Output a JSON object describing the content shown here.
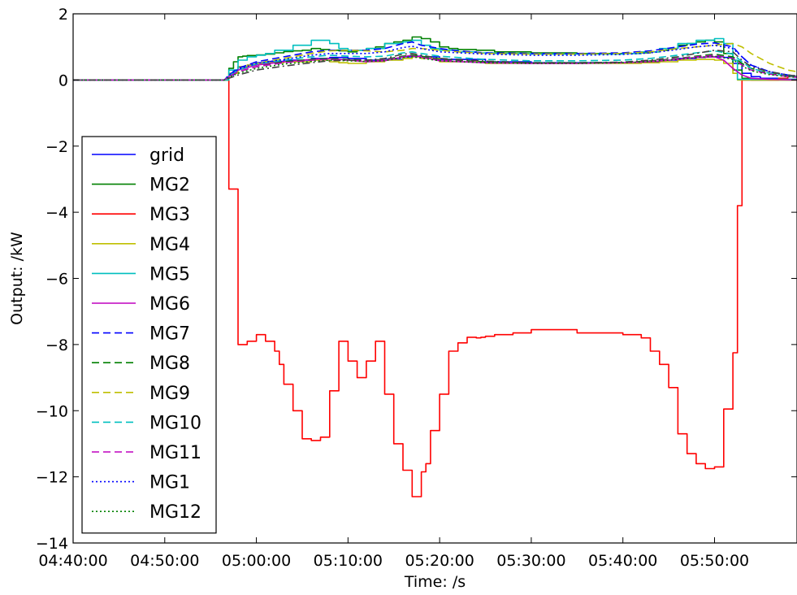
{
  "chart_data": {
    "type": "line",
    "title": "",
    "xlabel": "Time: /s",
    "ylabel": "Output: /kW",
    "xlim": [
      "04:40:00",
      "04:59:00+01:00"
    ],
    "x_range_minutes": [
      0,
      79
    ],
    "ylim": [
      -14,
      2
    ],
    "xticks": [
      "04:40:00",
      "04:50:00",
      "05:00:00",
      "05:10:00",
      "05:20:00",
      "05:30:00",
      "05:40:00",
      "05:50:00"
    ],
    "xtick_minutes": [
      0,
      10,
      20,
      30,
      40,
      50,
      60,
      70
    ],
    "yticks": [
      2,
      0,
      -2,
      -4,
      -6,
      -8,
      -10,
      -12,
      -14
    ],
    "ytick_labels": [
      "2",
      "0",
      "−2",
      "−4",
      "−6",
      "−8",
      "−10",
      "−12",
      "−14"
    ],
    "grid": false,
    "legend_position": "lower-left",
    "series": [
      {
        "name": "grid",
        "color": "#0000ff",
        "dash": "solid",
        "step": true,
        "x": [
          0,
          16.5,
          17,
          17.5,
          18,
          19,
          20,
          21,
          23,
          26,
          28,
          30,
          32,
          34,
          36,
          37,
          38,
          40,
          45,
          50,
          55,
          60,
          62,
          64,
          66,
          68,
          69,
          70,
          71,
          72,
          73,
          74,
          75,
          77,
          79
        ],
        "y": [
          0,
          0,
          0.15,
          0.3,
          0.4,
          0.45,
          0.52,
          0.56,
          0.6,
          0.65,
          0.68,
          0.65,
          0.6,
          0.62,
          0.7,
          0.72,
          0.7,
          0.62,
          0.55,
          0.52,
          0.52,
          0.52,
          0.55,
          0.6,
          0.65,
          0.68,
          0.7,
          0.7,
          0.68,
          0.5,
          0.2,
          0.1,
          0.05,
          0.02,
          0
        ]
      },
      {
        "name": "MG2",
        "color": "#008000",
        "dash": "solid",
        "step": true,
        "x": [
          0,
          16.5,
          17,
          17.5,
          18,
          18.5,
          19,
          20,
          21,
          22,
          23,
          24,
          25,
          26,
          27,
          28,
          29,
          30,
          31,
          32,
          33,
          34,
          35,
          36,
          37,
          38,
          39,
          40,
          41,
          42,
          44,
          46,
          50,
          55,
          60,
          62,
          63,
          64,
          65,
          66,
          67,
          68,
          69,
          70,
          71,
          72,
          73,
          74,
          75,
          79
        ],
        "y": [
          0,
          0,
          0.35,
          0.55,
          0.7,
          0.72,
          0.74,
          0.76,
          0.78,
          0.82,
          0.86,
          0.88,
          0.9,
          0.95,
          0.92,
          0.9,
          0.88,
          0.85,
          0.9,
          0.95,
          1.0,
          1.1,
          1.15,
          1.2,
          1.3,
          1.25,
          1.15,
          1.0,
          0.95,
          0.92,
          0.9,
          0.85,
          0.82,
          0.8,
          0.8,
          0.82,
          0.85,
          0.9,
          0.95,
          1.05,
          1.1,
          1.15,
          1.2,
          1.15,
          0.8,
          0.3,
          0.05,
          0,
          0,
          0
        ]
      },
      {
        "name": "MG3",
        "color": "#ff0000",
        "dash": "solid",
        "step": true,
        "x": [
          0,
          16.5,
          17,
          18,
          19,
          20,
          21,
          22,
          22.5,
          23,
          24,
          25,
          26,
          27,
          28,
          29,
          30,
          31,
          32,
          32.5,
          33,
          34,
          35,
          36,
          37,
          38,
          38.5,
          39,
          40,
          41,
          42,
          43,
          44,
          44.5,
          45,
          46,
          48,
          50,
          55,
          60,
          62,
          63,
          64,
          65,
          66,
          67,
          68,
          69,
          70,
          71,
          72,
          72.5,
          73,
          74,
          75,
          76,
          77,
          78,
          79
        ],
        "y": [
          0,
          0,
          -3.3,
          -8.0,
          -7.9,
          -7.7,
          -7.9,
          -8.2,
          -8.6,
          -9.2,
          -10.0,
          -10.85,
          -10.9,
          -10.8,
          -9.4,
          -7.9,
          -8.5,
          -9.0,
          -8.5,
          -8.5,
          -7.9,
          -9.5,
          -11.0,
          -11.8,
          -12.6,
          -11.85,
          -11.6,
          -10.6,
          -9.5,
          -8.2,
          -7.95,
          -7.78,
          -7.8,
          -7.78,
          -7.75,
          -7.7,
          -7.65,
          -7.55,
          -7.65,
          -7.7,
          -7.8,
          -8.2,
          -8.6,
          -9.3,
          -10.7,
          -11.3,
          -11.6,
          -11.75,
          -11.7,
          -9.95,
          -8.25,
          -3.8,
          0,
          0,
          0,
          0,
          0.05,
          0.1,
          0.15
        ]
      },
      {
        "name": "MG4",
        "color": "#bfbf00",
        "dash": "solid",
        "step": true,
        "x": [
          0,
          16.5,
          17,
          18,
          19,
          20,
          21,
          23,
          26,
          28,
          29,
          30,
          32,
          34,
          36,
          37,
          38,
          40,
          45,
          50,
          55,
          60,
          62,
          64,
          66,
          68,
          70,
          71,
          72,
          72.5,
          79
        ],
        "y": [
          0,
          0,
          0.2,
          0.4,
          0.45,
          0.5,
          0.52,
          0.55,
          0.6,
          0.55,
          0.52,
          0.5,
          0.55,
          0.6,
          0.65,
          0.7,
          0.65,
          0.55,
          0.5,
          0.5,
          0.5,
          0.5,
          0.52,
          0.55,
          0.6,
          0.62,
          0.6,
          0.5,
          0.2,
          0,
          0
        ]
      },
      {
        "name": "MG5",
        "color": "#00bfbf",
        "dash": "solid",
        "step": true,
        "x": [
          0,
          16.5,
          17,
          18,
          19,
          20,
          21,
          22,
          24,
          26,
          28,
          29,
          30,
          32,
          34,
          36,
          37,
          38,
          39,
          40,
          42,
          44,
          46,
          50,
          55,
          60,
          62,
          64,
          66,
          68,
          70,
          71,
          72,
          72.5,
          79
        ],
        "y": [
          0,
          0,
          0.3,
          0.6,
          0.7,
          0.75,
          0.8,
          0.9,
          1.05,
          1.2,
          1.1,
          0.95,
          0.9,
          0.95,
          1.1,
          1.15,
          1.2,
          1.05,
          0.95,
          0.9,
          0.85,
          0.82,
          0.8,
          0.78,
          0.78,
          0.8,
          0.85,
          0.95,
          1.1,
          1.2,
          1.25,
          1.1,
          0.6,
          0.02,
          0
        ]
      },
      {
        "name": "MG6",
        "color": "#bf00bf",
        "dash": "solid",
        "step": false,
        "x": [
          0,
          16.5,
          17,
          18,
          20,
          23,
          26,
          28,
          30,
          32,
          34,
          36,
          37,
          38,
          40,
          45,
          50,
          55,
          60,
          63,
          66,
          68,
          70,
          71,
          72,
          73,
          74,
          76,
          79
        ],
        "y": [
          0,
          0,
          0.1,
          0.3,
          0.45,
          0.55,
          0.62,
          0.65,
          0.6,
          0.55,
          0.58,
          0.7,
          0.75,
          0.7,
          0.58,
          0.52,
          0.5,
          0.5,
          0.52,
          0.55,
          0.62,
          0.68,
          0.7,
          0.6,
          0.35,
          0.15,
          0.05,
          0.02,
          0
        ]
      },
      {
        "name": "MG7",
        "color": "#0000ff",
        "dash": "9,5",
        "step": false,
        "x": [
          0,
          16.5,
          17,
          18,
          20,
          23,
          26,
          28,
          30,
          32,
          34,
          36,
          37,
          38,
          40,
          42,
          45,
          50,
          55,
          60,
          63,
          66,
          68,
          70,
          72,
          73,
          74,
          76,
          78,
          79
        ],
        "y": [
          0,
          0,
          0.15,
          0.35,
          0.55,
          0.7,
          0.85,
          0.9,
          0.9,
          0.9,
          0.95,
          1.1,
          1.15,
          1.05,
          0.95,
          0.88,
          0.82,
          0.8,
          0.8,
          0.82,
          0.88,
          1.0,
          1.08,
          1.12,
          1.0,
          0.7,
          0.45,
          0.25,
          0.15,
          0.1
        ]
      },
      {
        "name": "MG8",
        "color": "#008000",
        "dash": "9,5",
        "step": false,
        "x": [
          0,
          16.5,
          17,
          18,
          20,
          23,
          26,
          28,
          30,
          32,
          34,
          36,
          37,
          38,
          40,
          45,
          50,
          55,
          60,
          63,
          66,
          68,
          70,
          72,
          73,
          74,
          76,
          78,
          79
        ],
        "y": [
          0,
          0,
          0.1,
          0.25,
          0.4,
          0.55,
          0.62,
          0.65,
          0.62,
          0.6,
          0.62,
          0.72,
          0.75,
          0.72,
          0.62,
          0.55,
          0.52,
          0.52,
          0.53,
          0.58,
          0.65,
          0.72,
          0.78,
          0.7,
          0.5,
          0.35,
          0.2,
          0.12,
          0.1
        ]
      },
      {
        "name": "MG9",
        "color": "#bfbf00",
        "dash": "9,5",
        "step": false,
        "x": [
          0,
          16.5,
          17,
          18,
          20,
          23,
          26,
          28,
          30,
          32,
          34,
          36,
          37,
          38,
          40,
          42,
          45,
          50,
          55,
          60,
          63,
          66,
          68,
          70,
          71,
          72,
          73,
          74,
          76,
          78,
          79
        ],
        "y": [
          0,
          0,
          0.12,
          0.3,
          0.5,
          0.65,
          0.8,
          0.88,
          0.9,
          0.88,
          0.85,
          0.9,
          0.95,
          0.95,
          0.9,
          0.85,
          0.8,
          0.78,
          0.78,
          0.8,
          0.85,
          0.95,
          1.0,
          1.05,
          1.08,
          1.1,
          1.0,
          0.8,
          0.5,
          0.3,
          0.25
        ]
      },
      {
        "name": "MG10",
        "color": "#00bfbf",
        "dash": "9,5",
        "step": false,
        "x": [
          0,
          16.5,
          17,
          18,
          20,
          23,
          26,
          28,
          30,
          32,
          34,
          36,
          37,
          38,
          40,
          45,
          50,
          55,
          60,
          63,
          66,
          68,
          70,
          72,
          73,
          74,
          76,
          78,
          79
        ],
        "y": [
          0,
          0,
          0.12,
          0.3,
          0.48,
          0.6,
          0.7,
          0.75,
          0.72,
          0.7,
          0.72,
          0.82,
          0.85,
          0.8,
          0.72,
          0.62,
          0.58,
          0.58,
          0.6,
          0.65,
          0.75,
          0.82,
          0.88,
          0.78,
          0.55,
          0.35,
          0.2,
          0.12,
          0.1
        ]
      },
      {
        "name": "MG11",
        "color": "#bf00bf",
        "dash": "9,5",
        "step": false,
        "x": [
          0,
          16.5,
          17,
          18,
          20,
          23,
          26,
          28,
          30,
          32,
          34,
          36,
          37,
          38,
          40,
          45,
          50,
          55,
          60,
          63,
          66,
          68,
          70,
          72,
          73,
          74,
          76,
          78,
          79
        ],
        "y": [
          0,
          0,
          0.1,
          0.25,
          0.4,
          0.52,
          0.6,
          0.62,
          0.6,
          0.58,
          0.6,
          0.7,
          0.72,
          0.68,
          0.6,
          0.52,
          0.5,
          0.5,
          0.52,
          0.56,
          0.64,
          0.7,
          0.75,
          0.65,
          0.45,
          0.3,
          0.18,
          0.1,
          0.08
        ]
      },
      {
        "name": "MG1",
        "color": "#0000ff",
        "dash": "2,3",
        "step": false,
        "x": [
          0,
          16.5,
          17,
          18,
          20,
          23,
          26,
          28,
          30,
          32,
          34,
          36,
          37,
          38,
          40,
          45,
          50,
          55,
          60,
          63,
          66,
          68,
          70,
          72,
          73,
          74,
          76,
          78,
          79
        ],
        "y": [
          0,
          0,
          0.15,
          0.32,
          0.5,
          0.62,
          0.75,
          0.8,
          0.8,
          0.8,
          0.85,
          0.98,
          1.02,
          0.95,
          0.85,
          0.78,
          0.75,
          0.75,
          0.77,
          0.82,
          0.92,
          1.0,
          1.05,
          0.95,
          0.7,
          0.45,
          0.25,
          0.15,
          0.12
        ]
      },
      {
        "name": "MG12",
        "color": "#008000",
        "dash": "2,3",
        "step": false,
        "x": [
          0,
          16.5,
          17,
          18,
          20,
          23,
          26,
          28,
          30,
          32,
          34,
          36,
          37,
          38,
          40,
          45,
          50,
          55,
          60,
          63,
          66,
          68,
          70,
          72,
          73,
          74,
          76,
          78,
          79
        ],
        "y": [
          0,
          0,
          0.08,
          0.2,
          0.35,
          0.48,
          0.56,
          0.6,
          0.58,
          0.56,
          0.58,
          0.68,
          0.7,
          0.66,
          0.58,
          0.52,
          0.5,
          0.5,
          0.52,
          0.56,
          0.62,
          0.68,
          0.72,
          0.62,
          0.42,
          0.28,
          0.16,
          0.1,
          0.08
        ]
      },
      {
        "name": "",
        "color": "#404040",
        "dash": "9,4,2,4",
        "step": false,
        "x": [
          0,
          16.5,
          17,
          18,
          20,
          23,
          26,
          28,
          30,
          32,
          34,
          36,
          37,
          38,
          40,
          45,
          50,
          55,
          60,
          63,
          66,
          68,
          70,
          72,
          73,
          74,
          76,
          78,
          79
        ],
        "y": [
          0,
          0,
          0.05,
          0.15,
          0.3,
          0.42,
          0.52,
          0.58,
          0.6,
          0.6,
          0.65,
          0.78,
          0.8,
          0.75,
          0.65,
          0.57,
          0.52,
          0.52,
          0.54,
          0.6,
          0.7,
          0.8,
          0.9,
          0.85,
          0.6,
          0.4,
          0.25,
          0.15,
          0.12
        ]
      }
    ],
    "legend": [
      "grid",
      "MG2",
      "MG3",
      "MG4",
      "MG5",
      "MG6",
      "MG7",
      "MG8",
      "MG9",
      "MG10",
      "MG11",
      "MG1",
      "MG12"
    ]
  }
}
